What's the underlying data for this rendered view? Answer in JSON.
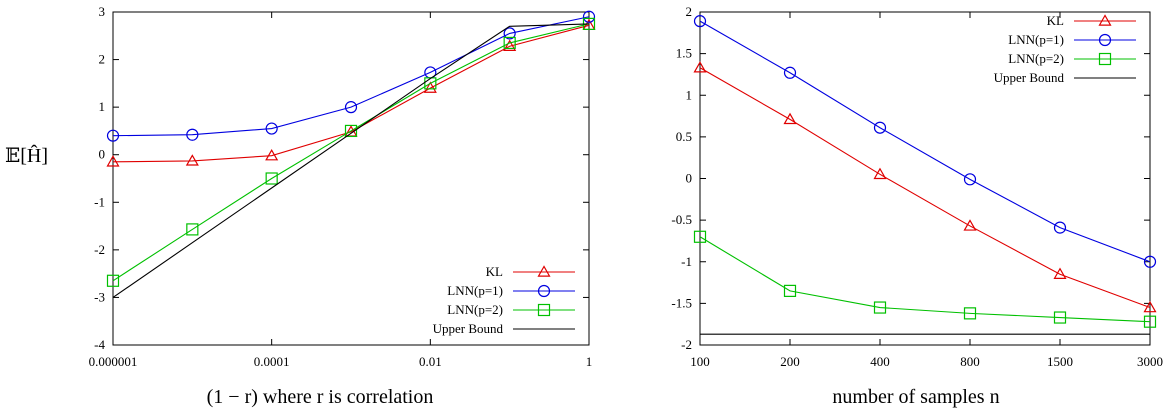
{
  "chart_data": [
    {
      "type": "line",
      "xlabel": "(1 − r) where r is correlation",
      "ylabel": "𝔼[Ĥ]",
      "x_scale": "log",
      "x": [
        1e-06,
        1e-05,
        0.0001,
        0.001,
        0.01,
        0.1,
        1
      ],
      "xticks": [
        "0.000001",
        "0.0001",
        "0.01",
        "1"
      ],
      "xtick_values": [
        1e-06,
        0.0001,
        0.01,
        1
      ],
      "ylim": [
        -4,
        3
      ],
      "yticks": [
        "-4",
        "-3",
        "-2",
        "-1",
        "0",
        "1",
        "2",
        "3"
      ],
      "legend_position": "bottom-right",
      "grid": false,
      "series": [
        {
          "name": "KL",
          "color": "#e00000",
          "marker": "triangle",
          "values": [
            -0.15,
            -0.13,
            -0.02,
            0.48,
            1.4,
            2.28,
            2.72
          ]
        },
        {
          "name": "LNN(p=1)",
          "color": "#0000e0",
          "marker": "circle",
          "values": [
            0.4,
            0.42,
            0.55,
            1.0,
            1.73,
            2.55,
            2.9
          ]
        },
        {
          "name": "LNN(p=2)",
          "color": "#00c000",
          "marker": "square",
          "values": [
            -2.65,
            -1.57,
            -0.5,
            0.5,
            1.5,
            2.35,
            2.75
          ]
        },
        {
          "name": "Upper Bound",
          "color": "#000000",
          "marker": "none",
          "values": [
            -3.0,
            -1.85,
            -0.7,
            0.45,
            1.6,
            2.7,
            2.75
          ]
        }
      ]
    },
    {
      "type": "line",
      "xlabel": "number of samples n",
      "ylabel": "",
      "x": [
        100,
        200,
        400,
        800,
        1500,
        3000
      ],
      "xticks": [
        "100",
        "200",
        "400",
        "800",
        "1500",
        "3000"
      ],
      "ylim": [
        -2,
        2
      ],
      "yticks": [
        "-2",
        "-1.5",
        "-1",
        "-0.5",
        "0",
        "0.5",
        "1",
        "1.5",
        "2"
      ],
      "legend_position": "top-right",
      "grid": false,
      "series": [
        {
          "name": "KL",
          "color": "#e00000",
          "marker": "triangle",
          "values": [
            1.33,
            0.71,
            0.05,
            -0.57,
            -1.15,
            -1.55
          ]
        },
        {
          "name": "LNN(p=1)",
          "color": "#0000e0",
          "marker": "circle",
          "values": [
            1.89,
            1.27,
            0.61,
            -0.01,
            -0.59,
            -1.0
          ]
        },
        {
          "name": "LNN(p=2)",
          "color": "#00c000",
          "marker": "square",
          "values": [
            -0.7,
            -1.35,
            -1.55,
            -1.62,
            -1.67,
            -1.72
          ]
        },
        {
          "name": "Upper Bound",
          "color": "#000000",
          "marker": "none",
          "values": [
            -1.87,
            -1.87,
            -1.87,
            -1.87,
            -1.87,
            -1.87
          ]
        }
      ]
    }
  ]
}
